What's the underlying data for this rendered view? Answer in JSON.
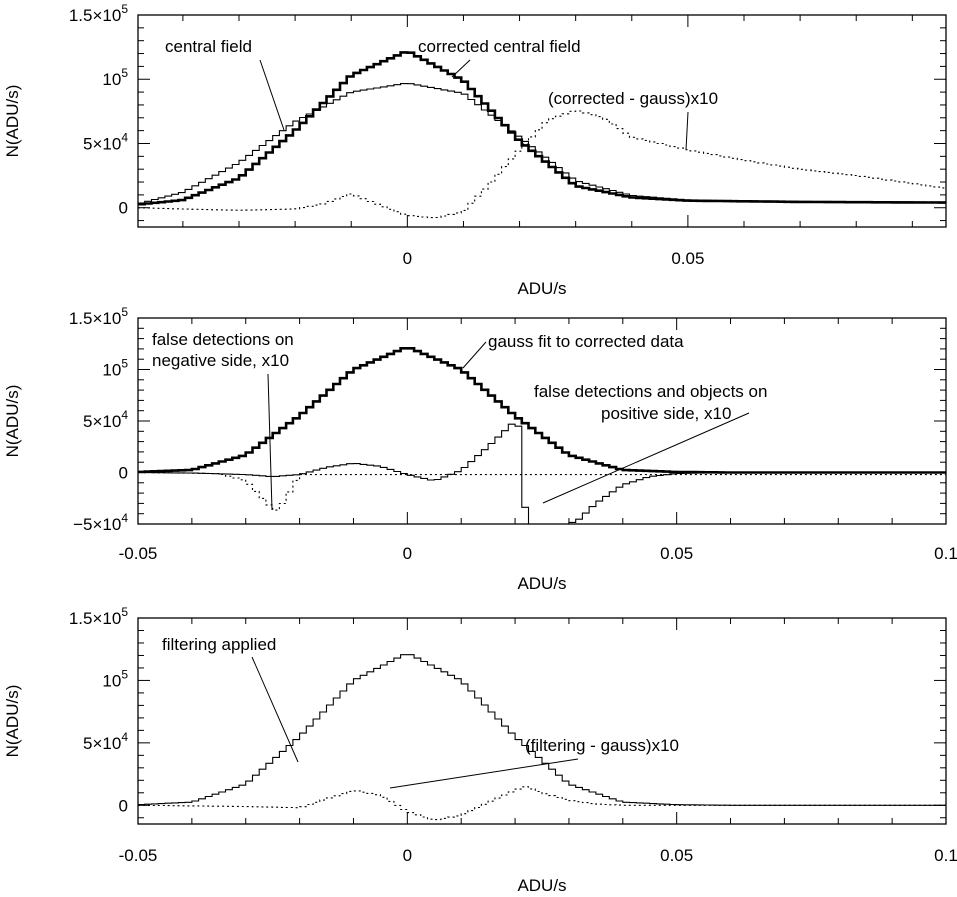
{
  "chart_data": [
    {
      "type": "line",
      "xlabel": "ADU/s",
      "ylabel": "N(ADU/s)",
      "xlim": [
        -0.048,
        0.096
      ],
      "ylim": [
        -15000,
        150000
      ],
      "x_ticks": [
        {
          "value": 0,
          "label": "0"
        },
        {
          "value": 0.05,
          "label": "0.05"
        }
      ],
      "y_ticks": [
        {
          "value": 0,
          "mant": "0",
          "exp": ""
        },
        {
          "value": 50000,
          "mant": "5×10",
          "exp": "4"
        },
        {
          "value": 100000,
          "mant": "10",
          "exp": "5"
        },
        {
          "value": 150000,
          "mant": "1.5×10",
          "exp": "5"
        }
      ],
      "series": [
        {
          "name": "central field",
          "style": "thin",
          "x": [
            -0.048,
            -0.04,
            -0.03,
            -0.02,
            -0.01,
            0,
            0.01,
            0.02,
            0.03,
            0.04,
            0.05,
            0.07,
            0.096
          ],
          "values": [
            3000,
            12000,
            35000,
            67000,
            90000,
            97000,
            89000,
            55000,
            21000,
            9500,
            6000,
            5000,
            4500
          ]
        },
        {
          "name": "corrected central field",
          "style": "thick",
          "x": [
            -0.048,
            -0.04,
            -0.03,
            -0.02,
            -0.01,
            0,
            0.01,
            0.02,
            0.03,
            0.04,
            0.05,
            0.07,
            0.096
          ],
          "values": [
            2500,
            6000,
            23000,
            60000,
            103000,
            122000,
            99000,
            52000,
            17000,
            8000,
            5500,
            4500,
            4000
          ]
        },
        {
          "name": "(corrected - gauss)x10",
          "style": "dotted",
          "x": [
            -0.048,
            -0.04,
            -0.03,
            -0.02,
            -0.015,
            -0.01,
            -0.005,
            0,
            0.005,
            0.01,
            0.015,
            0.02,
            0.025,
            0.03,
            0.035,
            0.04,
            0.05,
            0.06,
            0.07,
            0.08,
            0.09,
            0.096
          ],
          "values": [
            0,
            -1000,
            -2000,
            -1000,
            3000,
            11000,
            2000,
            -6000,
            -8000,
            -3000,
            20000,
            45000,
            68000,
            76000,
            70000,
            55000,
            45000,
            37000,
            30000,
            25000,
            19000,
            15000
          ]
        }
      ],
      "annotations": [
        "central field",
        "corrected central field",
        "(corrected - gauss)x10"
      ]
    },
    {
      "type": "line",
      "xlabel": "ADU/s",
      "ylabel": "N(ADU/s)",
      "xlim": [
        -0.05,
        0.1
      ],
      "ylim": [
        -50000,
        150000
      ],
      "x_ticks": [
        {
          "value": -0.05,
          "label": "-0.05"
        },
        {
          "value": 0,
          "label": "0"
        },
        {
          "value": 0.05,
          "label": "0.05"
        },
        {
          "value": 0.1,
          "label": "0.1"
        }
      ],
      "y_ticks": [
        {
          "value": -50000,
          "mant": "−5×10",
          "exp": "4"
        },
        {
          "value": 0,
          "mant": "0",
          "exp": ""
        },
        {
          "value": 50000,
          "mant": "5×10",
          "exp": "4"
        },
        {
          "value": 100000,
          "mant": "10",
          "exp": "5"
        },
        {
          "value": 150000,
          "mant": "1.5×10",
          "exp": "5"
        }
      ],
      "series": [
        {
          "name": "gauss fit to corrected data",
          "style": "thick",
          "x": [
            -0.05,
            -0.04,
            -0.03,
            -0.02,
            -0.01,
            0,
            0.01,
            0.02,
            0.03,
            0.04,
            0.05,
            0.06,
            0.1
          ],
          "values": [
            500,
            2500,
            17000,
            55000,
            100000,
            122000,
            100000,
            55000,
            17000,
            2500,
            500,
            0,
            0
          ]
        },
        {
          "name": "false detections on negative side, x10",
          "style": "dotted",
          "x": [
            -0.05,
            -0.035,
            -0.03,
            -0.026,
            -0.024,
            -0.022,
            -0.02
          ],
          "values": [
            0,
            -1000,
            -8000,
            -30000,
            -38000,
            -20000,
            -2000
          ]
        },
        {
          "name": "false detections and objects on positive side, x10",
          "style": "thin",
          "x": [
            -0.05,
            -0.04,
            -0.03,
            -0.025,
            -0.02,
            -0.015,
            -0.01,
            -0.005,
            0,
            0.005,
            0.01,
            0.015,
            0.018,
            0.02,
            0.021,
            0.0215,
            0.022,
            0.025,
            0.03,
            0.032,
            0.035,
            0.04,
            0.045,
            0.05,
            0.06,
            0.1
          ],
          "values": [
            0,
            -500,
            -2000,
            -4000,
            -2000,
            5000,
            9000,
            6000,
            -2000,
            -8000,
            2000,
            25000,
            40000,
            50000,
            42000,
            15000,
            -50000,
            -50000,
            -50000,
            -45000,
            -30000,
            -12000,
            -4000,
            -1000,
            0,
            0
          ]
        }
      ],
      "annotations": [
        "false detections on",
        "negative side, x10",
        "gauss fit to corrected data",
        "false detections and objects on",
        "positive side, x10"
      ]
    },
    {
      "type": "line",
      "xlabel": "ADU/s",
      "ylabel": "N(ADU/s)",
      "xlim": [
        -0.05,
        0.1
      ],
      "ylim": [
        -15000,
        150000
      ],
      "x_ticks": [
        {
          "value": -0.05,
          "label": "-0.05"
        },
        {
          "value": 0,
          "label": "0"
        },
        {
          "value": 0.05,
          "label": "0.05"
        },
        {
          "value": 0.1,
          "label": "0.1"
        }
      ],
      "y_ticks": [
        {
          "value": 0,
          "mant": "0",
          "exp": ""
        },
        {
          "value": 50000,
          "mant": "5×10",
          "exp": "4"
        },
        {
          "value": 100000,
          "mant": "10",
          "exp": "5"
        },
        {
          "value": 150000,
          "mant": "1.5×10",
          "exp": "5"
        }
      ],
      "series": [
        {
          "name": "filtering applied",
          "style": "thin",
          "x": [
            -0.05,
            -0.04,
            -0.03,
            -0.02,
            -0.01,
            0,
            0.01,
            0.02,
            0.03,
            0.04,
            0.05,
            0.06,
            0.1
          ],
          "values": [
            500,
            2500,
            17000,
            55000,
            100000,
            122000,
            100000,
            55000,
            17000,
            2500,
            500,
            0,
            0
          ]
        },
        {
          "name": "(filtering - gauss)x10",
          "style": "dotted",
          "x": [
            -0.05,
            -0.03,
            -0.02,
            -0.015,
            -0.01,
            -0.005,
            0,
            0.005,
            0.01,
            0.015,
            0.02,
            0.022,
            0.025,
            0.03,
            0.035,
            0.04,
            0.05,
            0.1
          ],
          "values": [
            0,
            -1000,
            -2000,
            5000,
            12000,
            8000,
            -5000,
            -12000,
            -8000,
            2000,
            12000,
            15000,
            10000,
            4000,
            1000,
            0,
            0,
            0
          ]
        }
      ],
      "annotations": [
        "filtering applied",
        "(filtering - gauss)x10"
      ]
    }
  ]
}
